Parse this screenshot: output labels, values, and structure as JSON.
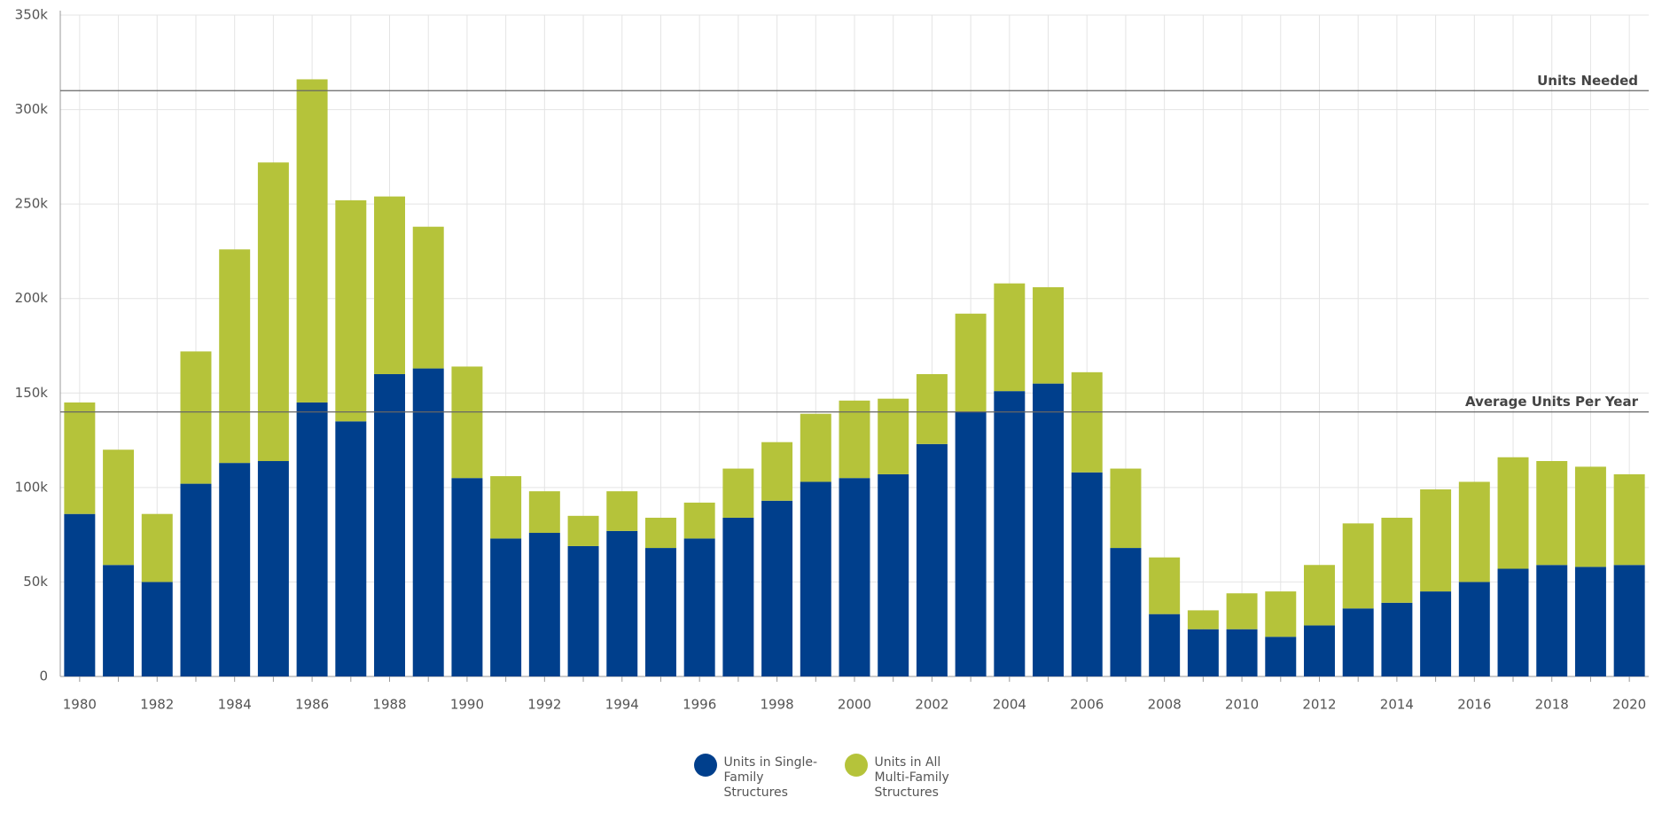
{
  "chart_data": {
    "type": "stacked_bar",
    "categories": [
      "1980",
      null,
      "1982",
      null,
      "1984",
      null,
      "1986",
      null,
      "1988",
      null,
      "1990",
      null,
      "1992",
      null,
      "1994",
      null,
      "1996",
      null,
      "1998",
      null,
      "2000",
      null,
      "2002",
      null,
      "2004",
      null,
      "2006",
      null,
      "2008",
      null,
      "2010",
      null,
      "2012",
      null,
      "2014",
      null,
      "2016",
      null,
      "2018",
      null,
      "2020"
    ],
    "series": [
      {
        "name": "Units in Single-Family Structures",
        "color": "#003f8c",
        "values": [
          86000,
          59000,
          50000,
          102000,
          113000,
          114000,
          145000,
          135000,
          160000,
          163000,
          105000,
          73000,
          76000,
          69000,
          77000,
          68000,
          73000,
          84000,
          93000,
          103000,
          105000,
          107000,
          123000,
          140000,
          151000,
          155000,
          108000,
          68000,
          33000,
          25000,
          25000,
          21000,
          27000,
          36000,
          39000,
          45000,
          50000,
          57000,
          59000,
          58000,
          59000
        ]
      },
      {
        "name": "Units in All Multi-Family Structures",
        "color": "#b5c33a",
        "values": [
          59000,
          61000,
          36000,
          70000,
          113000,
          158000,
          171000,
          117000,
          94000,
          75000,
          59000,
          33000,
          22000,
          16000,
          21000,
          16000,
          19000,
          26000,
          31000,
          36000,
          41000,
          40000,
          37000,
          52000,
          57000,
          51000,
          53000,
          42000,
          30000,
          10000,
          19000,
          24000,
          32000,
          45000,
          45000,
          54000,
          53000,
          59000,
          55000,
          53000,
          48000
        ]
      }
    ],
    "ylim": [
      0,
      350000
    ],
    "yticks": [
      0,
      {
        "value": 50000,
        "label": "50k"
      },
      {
        "value": 100000,
        "label": "100k"
      },
      {
        "value": 150000,
        "label": "150k"
      },
      {
        "value": 200000,
        "label": "200k"
      },
      {
        "value": 250000,
        "label": "250k"
      },
      {
        "value": 300000,
        "label": "300k"
      },
      {
        "value": 350000,
        "label": "350k"
      }
    ],
    "reference_lines": [
      {
        "label": "Units Needed",
        "value": 310000
      },
      {
        "label": "Average Units Per Year",
        "value": 140000
      }
    ],
    "grid": true,
    "legend": "bottom"
  }
}
